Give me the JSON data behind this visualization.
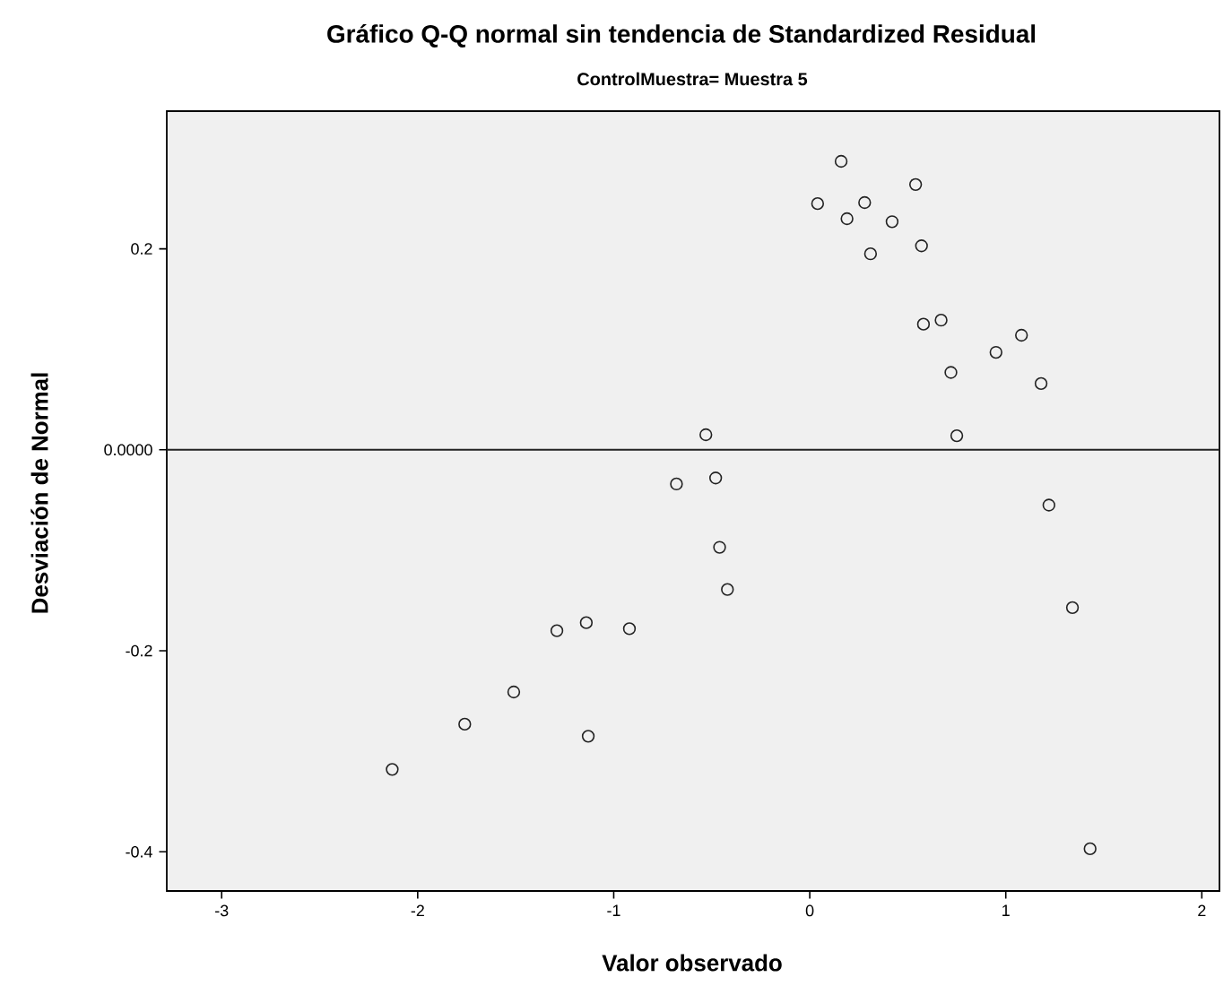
{
  "chart_data": {
    "type": "scatter",
    "title": "Gráfico Q-Q normal sin tendencia de Standardized Residual",
    "subtitle": "ControlMuestra= Muestra 5",
    "xlabel": "Valor observado",
    "ylabel": "Desviación de Normal",
    "series": [
      {
        "color": "#222222",
        "x": [
          -2.13,
          -1.76,
          -1.51,
          -1.29,
          -1.14,
          -1.13,
          -0.92,
          -0.68,
          -0.53,
          -0.48,
          -0.46,
          -0.42,
          0.04,
          0.16,
          0.19,
          0.28,
          0.31,
          0.42,
          0.54,
          0.57,
          0.58,
          0.67,
          0.72,
          0.75,
          0.95,
          1.08,
          1.18,
          1.22,
          1.34,
          1.43
        ],
        "values": [
          -0.318,
          -0.273,
          -0.241,
          -0.18,
          -0.172,
          -0.285,
          -0.178,
          -0.034,
          0.015,
          -0.028,
          -0.097,
          -0.139,
          0.245,
          0.287,
          0.23,
          0.246,
          0.195,
          0.227,
          0.264,
          0.203,
          0.125,
          0.129,
          0.077,
          0.014,
          0.097,
          0.114,
          0.066,
          -0.055,
          -0.157,
          -0.397
        ]
      }
    ],
    "xlim": [
      -3.28,
      2.09
    ],
    "ylim": [
      -0.439,
      0.337
    ],
    "xticks": [
      -3,
      -2,
      -1,
      0,
      1,
      2
    ],
    "yticks": [
      -0.4,
      -0.2,
      {
        "value": 0,
        "label": "0.0000"
      },
      0.2
    ],
    "ref_lines": [
      {
        "axis": "y",
        "value": 0,
        "color": "#222222"
      }
    ],
    "marker": "circle"
  }
}
